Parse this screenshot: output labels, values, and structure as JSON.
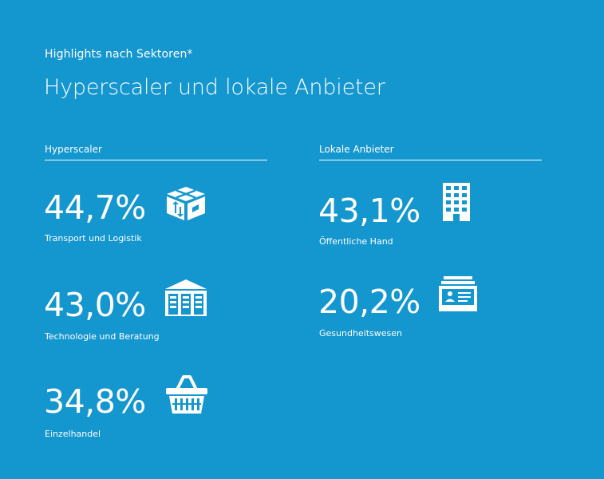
{
  "header": {
    "subtitle": "Highlights nach Sektoren*",
    "title": "Hyperscaler und lokale Anbieter"
  },
  "columns": {
    "left": {
      "heading": "Hyperscaler",
      "stats": [
        {
          "value": "44,7%",
          "label": "Transport und Logistik",
          "icon": "package-icon"
        },
        {
          "value": "43,0%",
          "label": "Technologie und Beratung",
          "icon": "warehouse-icon"
        },
        {
          "value": "34,8%",
          "label": "Einzelhandel",
          "icon": "shopping-basket-icon"
        }
      ]
    },
    "right": {
      "heading": "Lokale Anbieter",
      "stats": [
        {
          "value": "43,1%",
          "label": "Öffentliche Hand",
          "icon": "office-building-icon"
        },
        {
          "value": "20,2%",
          "label": "Gesundheitswesen",
          "icon": "patient-records-icon"
        }
      ]
    }
  },
  "colors": {
    "background": "#1496ce",
    "foreground": "#ffffff"
  }
}
